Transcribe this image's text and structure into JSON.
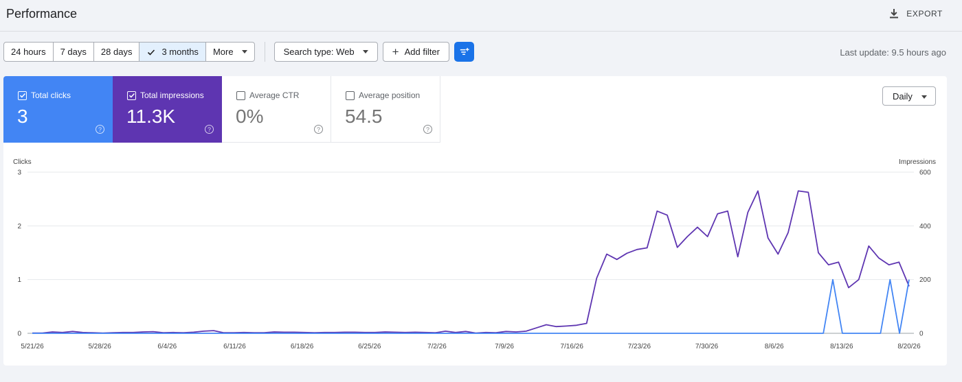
{
  "header": {
    "title": "Performance",
    "export_label": "EXPORT"
  },
  "date_range": {
    "options": [
      "24 hours",
      "7 days",
      "28 days",
      "3 months"
    ],
    "selected": "3 months",
    "more_label": "More"
  },
  "filters": {
    "search_type_label": "Search type: Web",
    "add_filter_label": "Add filter"
  },
  "last_update": "Last update: 9.5 hours ago",
  "metrics": [
    {
      "label": "Total clicks",
      "value": "3",
      "checked": true
    },
    {
      "label": "Total impressions",
      "value": "11.3K",
      "checked": true
    },
    {
      "label": "Average CTR",
      "value": "0%",
      "checked": false
    },
    {
      "label": "Average position",
      "value": "54.5",
      "checked": false
    }
  ],
  "granularity": "Daily",
  "colors": {
    "clicks": "#4285f4",
    "impressions": "#5e35b1",
    "active_bg": "#e3f0fd",
    "filter_btn": "#1a73e8"
  },
  "chart_data": {
    "type": "line",
    "ylabel_left": "Clicks",
    "ylabel_right": "Impressions",
    "y_left_ticks": [
      0,
      1,
      2,
      3
    ],
    "y_right_ticks": [
      0,
      200,
      400,
      600
    ],
    "ylim_left": [
      0,
      3
    ],
    "ylim_right": [
      0,
      600
    ],
    "x_tick_labels": [
      "5/21/26",
      "5/28/26",
      "6/4/26",
      "6/11/26",
      "6/18/26",
      "6/25/26",
      "7/2/26",
      "7/9/26",
      "7/16/26",
      "7/23/26",
      "7/30/26",
      "8/6/26",
      "8/13/26",
      "8/20/26"
    ],
    "grid": true,
    "series": [
      {
        "name": "Clicks",
        "axis": "left",
        "values": [
          0,
          0,
          0,
          0,
          0,
          0,
          0,
          0,
          0,
          0,
          0,
          0,
          0,
          0,
          0,
          0,
          0,
          0,
          0,
          0,
          0,
          0,
          0,
          0,
          0,
          0,
          0,
          0,
          0,
          0,
          0,
          0,
          0,
          0,
          0,
          0,
          0,
          0,
          0,
          0,
          0,
          0,
          0,
          0,
          0,
          0,
          0,
          0,
          0,
          0,
          0,
          0,
          0,
          0,
          0,
          0,
          0,
          0,
          0,
          0,
          0,
          0,
          0,
          0,
          0,
          0,
          0,
          0,
          0,
          0,
          0,
          0,
          0,
          0,
          0,
          0,
          0,
          0,
          0,
          0,
          0,
          0,
          0,
          0,
          1,
          0,
          0,
          0,
          0,
          0,
          1,
          0,
          1
        ]
      },
      {
        "name": "Impressions",
        "axis": "right",
        "values": [
          1,
          1,
          5,
          3,
          7,
          3,
          2,
          1,
          2,
          3,
          3,
          5,
          6,
          2,
          3,
          2,
          4,
          8,
          10,
          2,
          2,
          3,
          2,
          2,
          5,
          4,
          4,
          3,
          2,
          3,
          3,
          4,
          4,
          3,
          3,
          5,
          4,
          3,
          4,
          3,
          2,
          8,
          3,
          7,
          1,
          3,
          2,
          7,
          5,
          8,
          20,
          32,
          25,
          27,
          30,
          37,
          205,
          295,
          275,
          298,
          312,
          318,
          455,
          440,
          320,
          360,
          395,
          360,
          445,
          455,
          285,
          450,
          530,
          355,
          295,
          375,
          530,
          525,
          300,
          255,
          265,
          170,
          200,
          325,
          280,
          255,
          265,
          175
        ]
      }
    ]
  }
}
